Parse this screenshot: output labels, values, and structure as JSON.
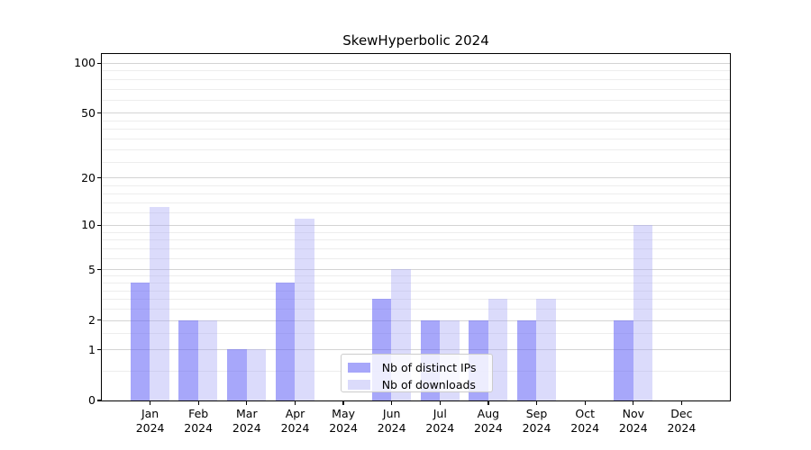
{
  "chart_data": {
    "type": "bar",
    "title": "SkewHyperbolic 2024",
    "categories": [
      "Jan",
      "Feb",
      "Mar",
      "Apr",
      "May",
      "Jun",
      "Jul",
      "Aug",
      "Sep",
      "Oct",
      "Nov",
      "Dec"
    ],
    "x_tick_second_line": "2024",
    "series": [
      {
        "name": "Nb of distinct IPs",
        "values": [
          4,
          2,
          1,
          4,
          0,
          3,
          2,
          2,
          2,
          0,
          2,
          0
        ],
        "color": "rgba(95,95,245,0.55)"
      },
      {
        "name": "Nb of downloads",
        "values": [
          13,
          2,
          1,
          11,
          0,
          5,
          2,
          3,
          3,
          0,
          10,
          0
        ],
        "color": "rgba(165,165,245,0.4)"
      }
    ],
    "yscale": "log1p",
    "ylim": [
      0,
      113.5
    ],
    "yticks": [
      0,
      1,
      2,
      5,
      10,
      20,
      50,
      100
    ],
    "minor_yticks": [
      0.5,
      1.5,
      2.5,
      3,
      3.5,
      4,
      4.5,
      6,
      7,
      8,
      9,
      12,
      14,
      16,
      18,
      25,
      30,
      35,
      40,
      45,
      60,
      70,
      80,
      90
    ],
    "grid": true,
    "legend_position": "lower center",
    "colors": {
      "distinct_ips_bar_composite": "#a8a8f8",
      "downloads_bar_composite": "#dcdcfa",
      "major_grid": "#d4d4d4",
      "minor_grid": "#ededed",
      "spine": "#000000",
      "text": "#000000"
    }
  }
}
